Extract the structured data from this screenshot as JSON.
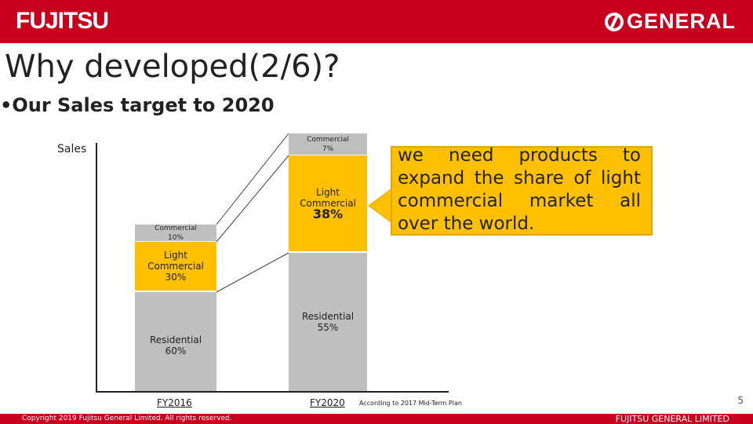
{
  "header": {
    "left_logo": "FUJITSU",
    "right_logo": "GENERAL"
  },
  "title": "Why developed(2/6)?",
  "subtitle": "•Our Sales target to 2020",
  "chart_data": {
    "type": "bar",
    "stacked": true,
    "ylabel": "Sales",
    "categories": [
      "FY2016",
      "FY2020"
    ],
    "series": [
      {
        "name": "Residential",
        "values": [
          60,
          55
        ],
        "labels": [
          "Residential\n60%",
          "Residential\n55%"
        ]
      },
      {
        "name": "Light Commercial",
        "values": [
          30,
          38
        ],
        "labels": [
          "Light\nCommercial\n30%",
          "Light\nCommercial\n38%"
        ]
      },
      {
        "name": "Commercial",
        "values": [
          10,
          7
        ],
        "labels": [
          "Commercial\n10%",
          "Commercial\n7%"
        ]
      }
    ]
  },
  "labels": {
    "res16": "Residential",
    "res16p": "60%",
    "lc16a": "Light",
    "lc16b": "Commercial",
    "lc16p": "30%",
    "com16": "Commercial",
    "com16p": "10%",
    "res20": "Residential",
    "res20p": "55%",
    "lc20a": "Light",
    "lc20b": "Commercial",
    "lc20p": "38%",
    "com20": "Commercial",
    "com20p": "7%",
    "x1": "FY2016",
    "x2": "FY2020"
  },
  "callout": "we need products to expand the share of light commercial market all over the world.",
  "note": "According to 2017 Mid-Term Plan",
  "footer": {
    "copyright": "Copyright 2019 Fujitsu General Limited. All rights reserved.",
    "company": "FUJITSU GENERAL LIMITED",
    "page": "5"
  },
  "colors": {
    "brand_red": "#c8001e",
    "light_commercial": "#ffc000",
    "residential": "#bfbfbf"
  }
}
